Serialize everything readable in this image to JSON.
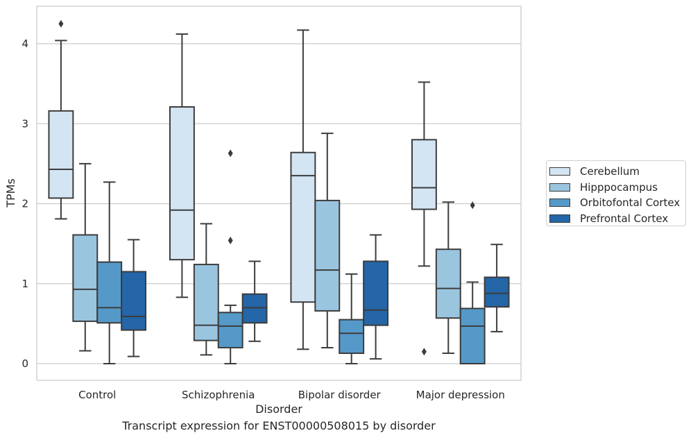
{
  "caption": "Transcript expression for ENST00000508015 by disorder",
  "chart_data": {
    "type": "box",
    "title": "",
    "xlabel": "Disorder",
    "ylabel": "TPMs",
    "ylim": [
      -0.2,
      4.75
    ],
    "yticks": [
      0,
      1,
      2,
      3,
      4
    ],
    "grid": "horizontal",
    "legend_position": "right",
    "categories": [
      "Control",
      "Schizophrenia",
      "Bipolar disorder",
      "Major depression"
    ],
    "series": [
      {
        "name": "Cerebellum",
        "color": "#d3e4f3",
        "boxes": [
          {
            "whislo": 1.81,
            "q1": 2.07,
            "med": 2.43,
            "q3": 3.16,
            "whishi": 4.04,
            "fliers": [
              4.25
            ]
          },
          {
            "whislo": 0.83,
            "q1": 1.3,
            "med": 1.92,
            "q3": 3.21,
            "whishi": 4.12,
            "fliers": []
          },
          {
            "whislo": 0.18,
            "q1": 0.77,
            "med": 2.35,
            "q3": 2.64,
            "whishi": 4.17,
            "fliers": []
          },
          {
            "whislo": 1.22,
            "q1": 1.93,
            "med": 2.2,
            "q3": 2.8,
            "whishi": 3.52,
            "fliers": [
              0.15
            ]
          }
        ]
      },
      {
        "name": "Hipppocampus",
        "color": "#9ac5df",
        "boxes": [
          {
            "whislo": 0.16,
            "q1": 0.53,
            "med": 0.93,
            "q3": 1.61,
            "whishi": 2.5,
            "fliers": []
          },
          {
            "whislo": 0.11,
            "q1": 0.29,
            "med": 0.48,
            "q3": 1.24,
            "whishi": 1.75,
            "fliers": []
          },
          {
            "whislo": 0.2,
            "q1": 0.66,
            "med": 1.17,
            "q3": 2.04,
            "whishi": 2.88,
            "fliers": []
          },
          {
            "whislo": 0.13,
            "q1": 0.57,
            "med": 0.94,
            "q3": 1.43,
            "whishi": 2.02,
            "fliers": []
          }
        ]
      },
      {
        "name": "Orbitofontal Cortex",
        "color": "#5599c8",
        "boxes": [
          {
            "whislo": 0.0,
            "q1": 0.51,
            "med": 0.7,
            "q3": 1.27,
            "whishi": 2.27,
            "fliers": []
          },
          {
            "whislo": 0.0,
            "q1": 0.2,
            "med": 0.47,
            "q3": 0.64,
            "whishi": 0.73,
            "fliers": [
              2.63,
              1.54
            ]
          },
          {
            "whislo": 0.0,
            "q1": 0.13,
            "med": 0.38,
            "q3": 0.55,
            "whishi": 1.12,
            "fliers": []
          },
          {
            "whislo": 0.0,
            "q1": 0.0,
            "med": 0.47,
            "q3": 0.69,
            "whishi": 1.02,
            "fliers": [
              1.98
            ]
          }
        ]
      },
      {
        "name": "Prefrontal Cortex",
        "color": "#2466a7",
        "boxes": [
          {
            "whislo": 0.09,
            "q1": 0.42,
            "med": 0.59,
            "q3": 1.15,
            "whishi": 1.55,
            "fliers": []
          },
          {
            "whislo": 0.28,
            "q1": 0.51,
            "med": 0.7,
            "q3": 0.87,
            "whishi": 1.28,
            "fliers": []
          },
          {
            "whislo": 0.06,
            "q1": 0.48,
            "med": 0.67,
            "q3": 1.28,
            "whishi": 1.61,
            "fliers": []
          },
          {
            "whislo": 0.4,
            "q1": 0.71,
            "med": 0.88,
            "q3": 1.08,
            "whishi": 1.49,
            "fliers": []
          }
        ]
      }
    ]
  }
}
